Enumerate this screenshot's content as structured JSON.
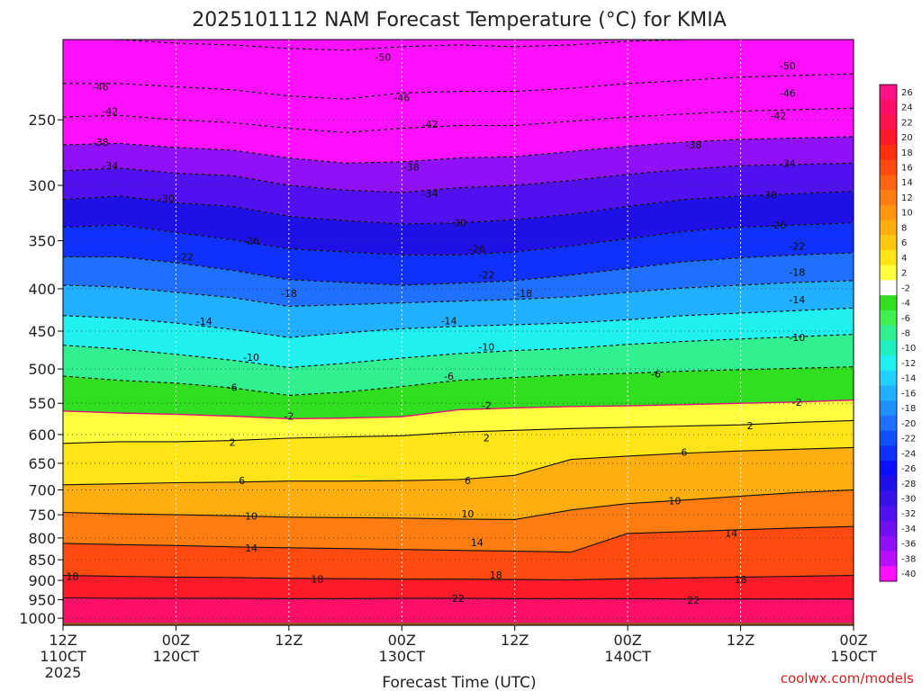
{
  "title": "2025101112 NAM Forecast Temperature (°C) for KMIA",
  "credit": "coolwx.com/models",
  "chart_data": {
    "type": "heatmap",
    "title": "2025101112 NAM Forecast Temperature (°C) for KMIA",
    "xlabel": "Forecast Time (UTC)",
    "ylabel": "",
    "x_range_hours": [
      0,
      84
    ],
    "y_range_hpa": [
      1020,
      200
    ],
    "y_scale": "log",
    "x_ticks": [
      {
        "hour": 0,
        "line1": "12Z",
        "line2": "110CT",
        "line3": "2025"
      },
      {
        "hour": 12,
        "line1": "00Z",
        "line2": "120CT",
        "line3": ""
      },
      {
        "hour": 24,
        "line1": "12Z",
        "line2": "",
        "line3": ""
      },
      {
        "hour": 36,
        "line1": "00Z",
        "line2": "130CT",
        "line3": ""
      },
      {
        "hour": 48,
        "line1": "12Z",
        "line2": "",
        "line3": ""
      },
      {
        "hour": 60,
        "line1": "00Z",
        "line2": "140CT",
        "line3": ""
      },
      {
        "hour": 72,
        "line1": "12Z",
        "line2": "",
        "line3": ""
      },
      {
        "hour": 84,
        "line1": "00Z",
        "line2": "150CT",
        "line3": ""
      }
    ],
    "y_ticks": [
      250,
      300,
      350,
      400,
      450,
      500,
      550,
      600,
      650,
      700,
      750,
      800,
      850,
      900,
      950,
      1000
    ],
    "grid": true,
    "colorbar_labels": [
      26,
      24,
      22,
      20,
      18,
      16,
      14,
      12,
      10,
      8,
      6,
      4,
      2,
      -2,
      -4,
      -6,
      -8,
      -10,
      -12,
      -14,
      -16,
      -18,
      -20,
      -22,
      -24,
      -26,
      -28,
      -30,
      -32,
      -34,
      -36,
      -38,
      -40
    ],
    "colorbar_colors": [
      "#ff1188",
      "#ff0f6a",
      "#ff1450",
      "#ff1a2a",
      "#ff3010",
      "#ff4a10",
      "#ff6410",
      "#ff7d10",
      "#ff9510",
      "#ffae10",
      "#ffc810",
      "#ffe418",
      "#ffff40",
      "#ffffff",
      "#30e020",
      "#40f050",
      "#30f090",
      "#20f0c0",
      "#20f0f0",
      "#20d0ff",
      "#20b0ff",
      "#2090ff",
      "#2070ff",
      "#1050ff",
      "#1030ff",
      "#0a10ff",
      "#2010e8",
      "#3810e8",
      "#5010f0",
      "#7010f0",
      "#9010f8",
      "#b810ff",
      "#ff10ff"
    ],
    "contour_levels": [
      -50,
      -46,
      -42,
      -38,
      -34,
      -30,
      -26,
      -22,
      -18,
      -14,
      -10,
      -6,
      -2,
      2,
      6,
      10,
      14,
      18,
      22
    ],
    "profiles": [
      {
        "hour": 0,
        "pres_at_temp": {
          "-50": 200,
          "-46": 226,
          "-42": 248,
          "-38": 268,
          "-34": 288,
          "-30": 312,
          "-26": 337,
          "-22": 366,
          "-18": 396,
          "-14": 431,
          "-10": 468,
          "-6": 510,
          "-2": 562,
          "2": 615,
          "6": 690,
          "10": 745,
          "14": 812,
          "18": 888,
          "22": 945
        }
      },
      {
        "hour": 6,
        "pres_at_temp": {
          "-50": 200,
          "-46": 226,
          "-42": 247,
          "-38": 267,
          "-34": 286,
          "-30": 309,
          "-26": 335,
          "-22": 366,
          "-18": 398,
          "-14": 434,
          "-10": 473,
          "-6": 516,
          "-2": 565,
          "2": 612,
          "6": 688,
          "10": 748,
          "14": 815,
          "18": 890,
          "22": 946
        }
      },
      {
        "hour": 12,
        "pres_at_temp": {
          "-50": 202,
          "-46": 228,
          "-42": 250,
          "-38": 270,
          "-34": 290,
          "-30": 315,
          "-26": 342,
          "-22": 372,
          "-18": 404,
          "-14": 440,
          "-10": 480,
          "-6": 520,
          "-2": 567,
          "2": 612,
          "6": 686,
          "10": 750,
          "14": 817,
          "18": 892,
          "22": 946
        }
      },
      {
        "hour": 18,
        "pres_at_temp": {
          "-50": 203,
          "-46": 230,
          "-42": 252,
          "-38": 272,
          "-34": 292,
          "-30": 318,
          "-26": 349,
          "-22": 380,
          "-18": 410,
          "-14": 448,
          "-10": 488,
          "-6": 527,
          "-2": 570,
          "2": 610,
          "6": 685,
          "10": 752,
          "14": 820,
          "18": 893,
          "22": 946
        }
      },
      {
        "hour": 24,
        "pres_at_temp": {
          "-50": 205,
          "-46": 234,
          "-42": 256,
          "-38": 278,
          "-34": 300,
          "-30": 327,
          "-26": 358,
          "-22": 390,
          "-18": 420,
          "-14": 458,
          "-10": 498,
          "-6": 538,
          "-2": 574,
          "2": 606,
          "6": 683,
          "10": 755,
          "14": 822,
          "18": 895,
          "22": 947
        }
      },
      {
        "hour": 30,
        "pres_at_temp": {
          "-50": 206,
          "-46": 236,
          "-42": 259,
          "-38": 282,
          "-34": 304,
          "-30": 331,
          "-26": 361,
          "-22": 393,
          "-18": 418,
          "-14": 452,
          "-10": 492,
          "-6": 533,
          "-2": 573,
          "2": 604,
          "6": 683,
          "10": 756,
          "14": 824,
          "18": 896,
          "22": 947
        }
      },
      {
        "hour": 36,
        "pres_at_temp": {
          "-50": 204,
          "-46": 232,
          "-42": 256,
          "-38": 281,
          "-34": 306,
          "-30": 334,
          "-26": 364,
          "-22": 396,
          "-18": 416,
          "-14": 447,
          "-10": 485,
          "-6": 525,
          "-2": 571,
          "2": 602,
          "6": 682,
          "10": 757,
          "14": 826,
          "18": 897,
          "22": 946
        }
      },
      {
        "hour": 42,
        "pres_at_temp": {
          "-50": 203,
          "-46": 231,
          "-42": 254,
          "-38": 278,
          "-34": 302,
          "-30": 333,
          "-26": 364,
          "-22": 394,
          "-18": 414,
          "-14": 444,
          "-10": 479,
          "-6": 516,
          "-2": 560,
          "2": 596,
          "6": 680,
          "10": 759,
          "14": 828,
          "18": 897,
          "22": 946
        }
      },
      {
        "hour": 48,
        "pres_at_temp": {
          "-50": 204,
          "-46": 231,
          "-42": 254,
          "-38": 277,
          "-34": 300,
          "-30": 330,
          "-26": 361,
          "-22": 391,
          "-18": 412,
          "-14": 442,
          "-10": 475,
          "-6": 512,
          "-2": 557,
          "2": 593,
          "6": 672,
          "10": 760,
          "14": 830,
          "18": 898,
          "22": 947
        }
      },
      {
        "hour": 54,
        "pres_at_temp": {
          "-50": 203,
          "-46": 229,
          "-42": 251,
          "-38": 273,
          "-34": 296,
          "-30": 325,
          "-26": 355,
          "-22": 385,
          "-18": 409,
          "-14": 440,
          "-10": 472,
          "-6": 508,
          "-2": 555,
          "2": 590,
          "6": 643,
          "10": 740,
          "14": 832,
          "18": 899,
          "22": 947
        }
      },
      {
        "hour": 60,
        "pres_at_temp": {
          "-50": 201,
          "-46": 226,
          "-42": 248,
          "-38": 269,
          "-34": 291,
          "-30": 318,
          "-26": 348,
          "-22": 378,
          "-18": 404,
          "-14": 436,
          "-10": 467,
          "-6": 506,
          "-2": 554,
          "2": 588,
          "6": 637,
          "10": 727,
          "14": 790,
          "18": 896,
          "22": 947
        }
      },
      {
        "hour": 66,
        "pres_at_temp": {
          "-50": 200,
          "-46": 224,
          "-42": 246,
          "-38": 266,
          "-34": 287,
          "-30": 312,
          "-26": 341,
          "-22": 371,
          "-18": 399,
          "-14": 431,
          "-10": 463,
          "-6": 503,
          "-2": 552,
          "2": 586,
          "6": 632,
          "10": 720,
          "14": 786,
          "18": 894,
          "22": 948
        }
      },
      {
        "hour": 72,
        "pres_at_temp": {
          "-50": 200,
          "-46": 222,
          "-42": 244,
          "-38": 264,
          "-34": 284,
          "-30": 309,
          "-26": 337,
          "-22": 367,
          "-18": 396,
          "-14": 428,
          "-10": 460,
          "-6": 501,
          "-2": 550,
          "2": 584,
          "6": 628,
          "10": 712,
          "14": 782,
          "18": 892,
          "22": 948
        }
      },
      {
        "hour": 78,
        "pres_at_temp": {
          "-50": 200,
          "-46": 221,
          "-42": 243,
          "-38": 263,
          "-34": 283,
          "-30": 307,
          "-26": 335,
          "-22": 364,
          "-18": 393,
          "-14": 425,
          "-10": 457,
          "-6": 499,
          "-2": 548,
          "2": 580,
          "6": 625,
          "10": 705,
          "14": 778,
          "18": 890,
          "22": 948
        }
      },
      {
        "hour": 84,
        "pres_at_temp": {
          "-50": 200,
          "-46": 220,
          "-42": 242,
          "-38": 262,
          "-34": 282,
          "-30": 305,
          "-26": 333,
          "-22": 362,
          "-18": 391,
          "-14": 422,
          "-10": 454,
          "-6": 497,
          "-2": 545,
          "2": 577,
          "6": 622,
          "10": 700,
          "14": 775,
          "18": 888,
          "22": 948
        }
      }
    ],
    "contour_labels": [
      {
        "text": "-50",
        "hour": 34,
        "pres": 210
      },
      {
        "text": "-50",
        "hour": 77,
        "pres": 215
      },
      {
        "text": "-46",
        "hour": 4,
        "pres": 228
      },
      {
        "text": "-46",
        "hour": 36,
        "pres": 235
      },
      {
        "text": "-46",
        "hour": 77,
        "pres": 232
      },
      {
        "text": "-42",
        "hour": 5,
        "pres": 244
      },
      {
        "text": "-42",
        "hour": 39,
        "pres": 253
      },
      {
        "text": "-42",
        "hour": 76,
        "pres": 247
      },
      {
        "text": "-38",
        "hour": 4,
        "pres": 266
      },
      {
        "text": "-38",
        "hour": 37,
        "pres": 285
      },
      {
        "text": "-38",
        "hour": 67,
        "pres": 268
      },
      {
        "text": "-34",
        "hour": 5,
        "pres": 284
      },
      {
        "text": "-34",
        "hour": 39,
        "pres": 307
      },
      {
        "text": "-34",
        "hour": 77,
        "pres": 282
      },
      {
        "text": "-30",
        "hour": 11,
        "pres": 311
      },
      {
        "text": "-30",
        "hour": 42,
        "pres": 333
      },
      {
        "text": "-30",
        "hour": 75,
        "pres": 308
      },
      {
        "text": "-26",
        "hour": 20,
        "pres": 350
      },
      {
        "text": "-26",
        "hour": 44,
        "pres": 358
      },
      {
        "text": "-26",
        "hour": 76,
        "pres": 335
      },
      {
        "text": "-22",
        "hour": 13,
        "pres": 366
      },
      {
        "text": "-22",
        "hour": 45,
        "pres": 385
      },
      {
        "text": "-22",
        "hour": 78,
        "pres": 355
      },
      {
        "text": "-18",
        "hour": 24,
        "pres": 405
      },
      {
        "text": "-18",
        "hour": 49,
        "pres": 405
      },
      {
        "text": "-18",
        "hour": 78,
        "pres": 382
      },
      {
        "text": "-14",
        "hour": 15,
        "pres": 438
      },
      {
        "text": "-14",
        "hour": 41,
        "pres": 437
      },
      {
        "text": "-14",
        "hour": 78,
        "pres": 412
      },
      {
        "text": "-10",
        "hour": 20,
        "pres": 484
      },
      {
        "text": "-10",
        "hour": 45,
        "pres": 470
      },
      {
        "text": "-10",
        "hour": 78,
        "pres": 458
      },
      {
        "text": "-6",
        "hour": 18,
        "pres": 526
      },
      {
        "text": "-6",
        "hour": 41,
        "pres": 510
      },
      {
        "text": "-6",
        "hour": 63,
        "pres": 507
      },
      {
        "text": "-2",
        "hour": 24,
        "pres": 570
      },
      {
        "text": "-2",
        "hour": 45,
        "pres": 553
      },
      {
        "text": "-2",
        "hour": 78,
        "pres": 548
      },
      {
        "text": "2",
        "hour": 18,
        "pres": 613
      },
      {
        "text": "2",
        "hour": 45,
        "pres": 605
      },
      {
        "text": "2",
        "hour": 73,
        "pres": 585
      },
      {
        "text": "6",
        "hour": 19,
        "pres": 682
      },
      {
        "text": "6",
        "hour": 43,
        "pres": 682
      },
      {
        "text": "6",
        "hour": 66,
        "pres": 630
      },
      {
        "text": "10",
        "hour": 20,
        "pres": 753
      },
      {
        "text": "10",
        "hour": 43,
        "pres": 748
      },
      {
        "text": "10",
        "hour": 65,
        "pres": 721
      },
      {
        "text": "14",
        "hour": 20,
        "pres": 822
      },
      {
        "text": "14",
        "hour": 44,
        "pres": 810
      },
      {
        "text": "14",
        "hour": 71,
        "pres": 789
      },
      {
        "text": "18",
        "hour": 1,
        "pres": 890
      },
      {
        "text": "18",
        "hour": 27,
        "pres": 897
      },
      {
        "text": "18",
        "hour": 46,
        "pres": 887
      },
      {
        "text": "18",
        "hour": 72,
        "pres": 898
      },
      {
        "text": "22",
        "hour": 42,
        "pres": 946
      },
      {
        "text": "22",
        "hour": 67,
        "pres": 951
      }
    ]
  }
}
